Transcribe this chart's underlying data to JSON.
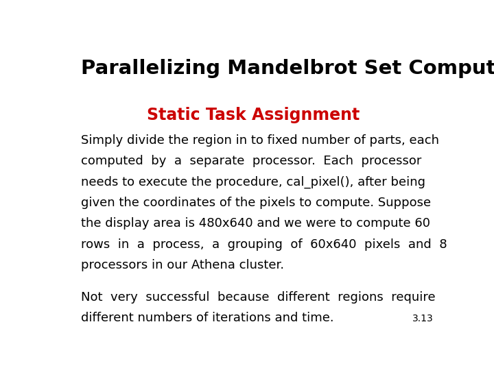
{
  "title": "Parallelizing Mandelbrot Set Computation",
  "subtitle": "Static Task Assignment",
  "subtitle_color": "#cc0000",
  "body_paragraph1_lines": [
    "Simply divide the region in to fixed number of parts, each",
    "computed  by  a  separate  processor.  Each  processor",
    "needs to execute the procedure, cal_pixel(), after being",
    "given the coordinates of the pixels to compute. Suppose",
    "the display area is 480x640 and we were to compute 60",
    "rows  in  a  process,  a  grouping  of  60x640  pixels  and  8",
    "processors in our Athena cluster."
  ],
  "body_paragraph2_lines": [
    "Not  very  successful  because  different  regions  require",
    "different numbers of iterations and time."
  ],
  "page_number": "3.13",
  "bg_color": "#ffffff",
  "title_color": "#000000",
  "body_color": "#000000",
  "title_fontsize": 21,
  "subtitle_fontsize": 17,
  "body_fontsize": 13,
  "page_number_fontsize": 10
}
